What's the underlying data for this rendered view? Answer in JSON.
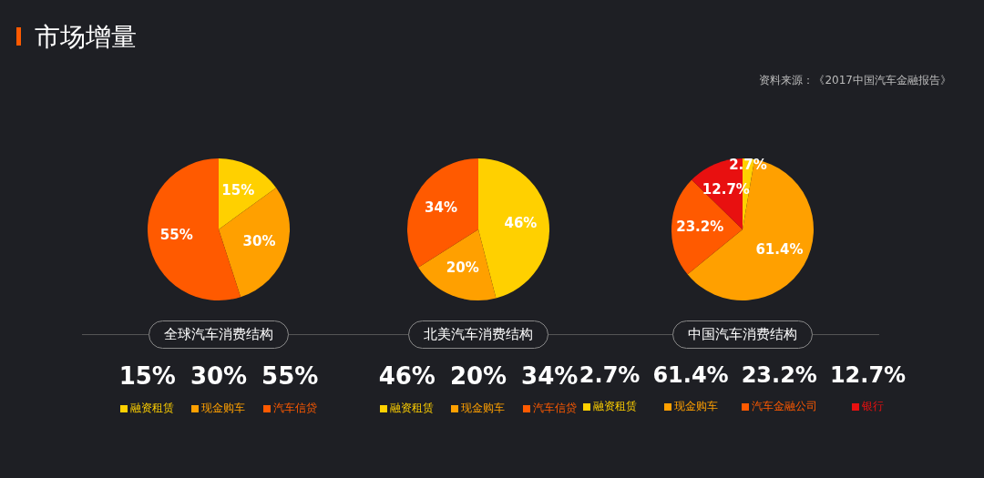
{
  "chart_data": [
    {
      "type": "pie",
      "title": "全球汽车消费结构",
      "annotations": [
        "市场增量",
        "资料来源：《2017中国汽车金融报告》"
      ],
      "categories": [
        "融资租赁",
        "现金购车",
        "汽车信贷"
      ],
      "values": [
        15,
        30,
        55
      ],
      "colors": [
        "#ffd000",
        "#ffa000",
        "#ff5a00"
      ],
      "value_labels": [
        "15%",
        "30%",
        "55%"
      ],
      "legend": "bottom"
    },
    {
      "type": "pie",
      "title": "北美汽车消费结构",
      "categories": [
        "融资租赁",
        "现金购车",
        "汽车信贷"
      ],
      "values": [
        46,
        20,
        34
      ],
      "colors": [
        "#ffd000",
        "#ffa000",
        "#ff5a00"
      ],
      "value_labels": [
        "46%",
        "20%",
        "34%"
      ],
      "legend": "bottom"
    },
    {
      "type": "pie",
      "title": "中国汽车消费结构",
      "categories": [
        "融资租赁",
        "现金购车",
        "汽车金融公司",
        "银行"
      ],
      "values": [
        2.7,
        61.4,
        23.2,
        12.7
      ],
      "colors": [
        "#ffd000",
        "#ffa000",
        "#ff5a00",
        "#e81010"
      ],
      "value_labels": [
        "2.7%",
        "61.4%",
        "23.2%",
        "12.7%"
      ],
      "legend": "bottom"
    }
  ]
}
